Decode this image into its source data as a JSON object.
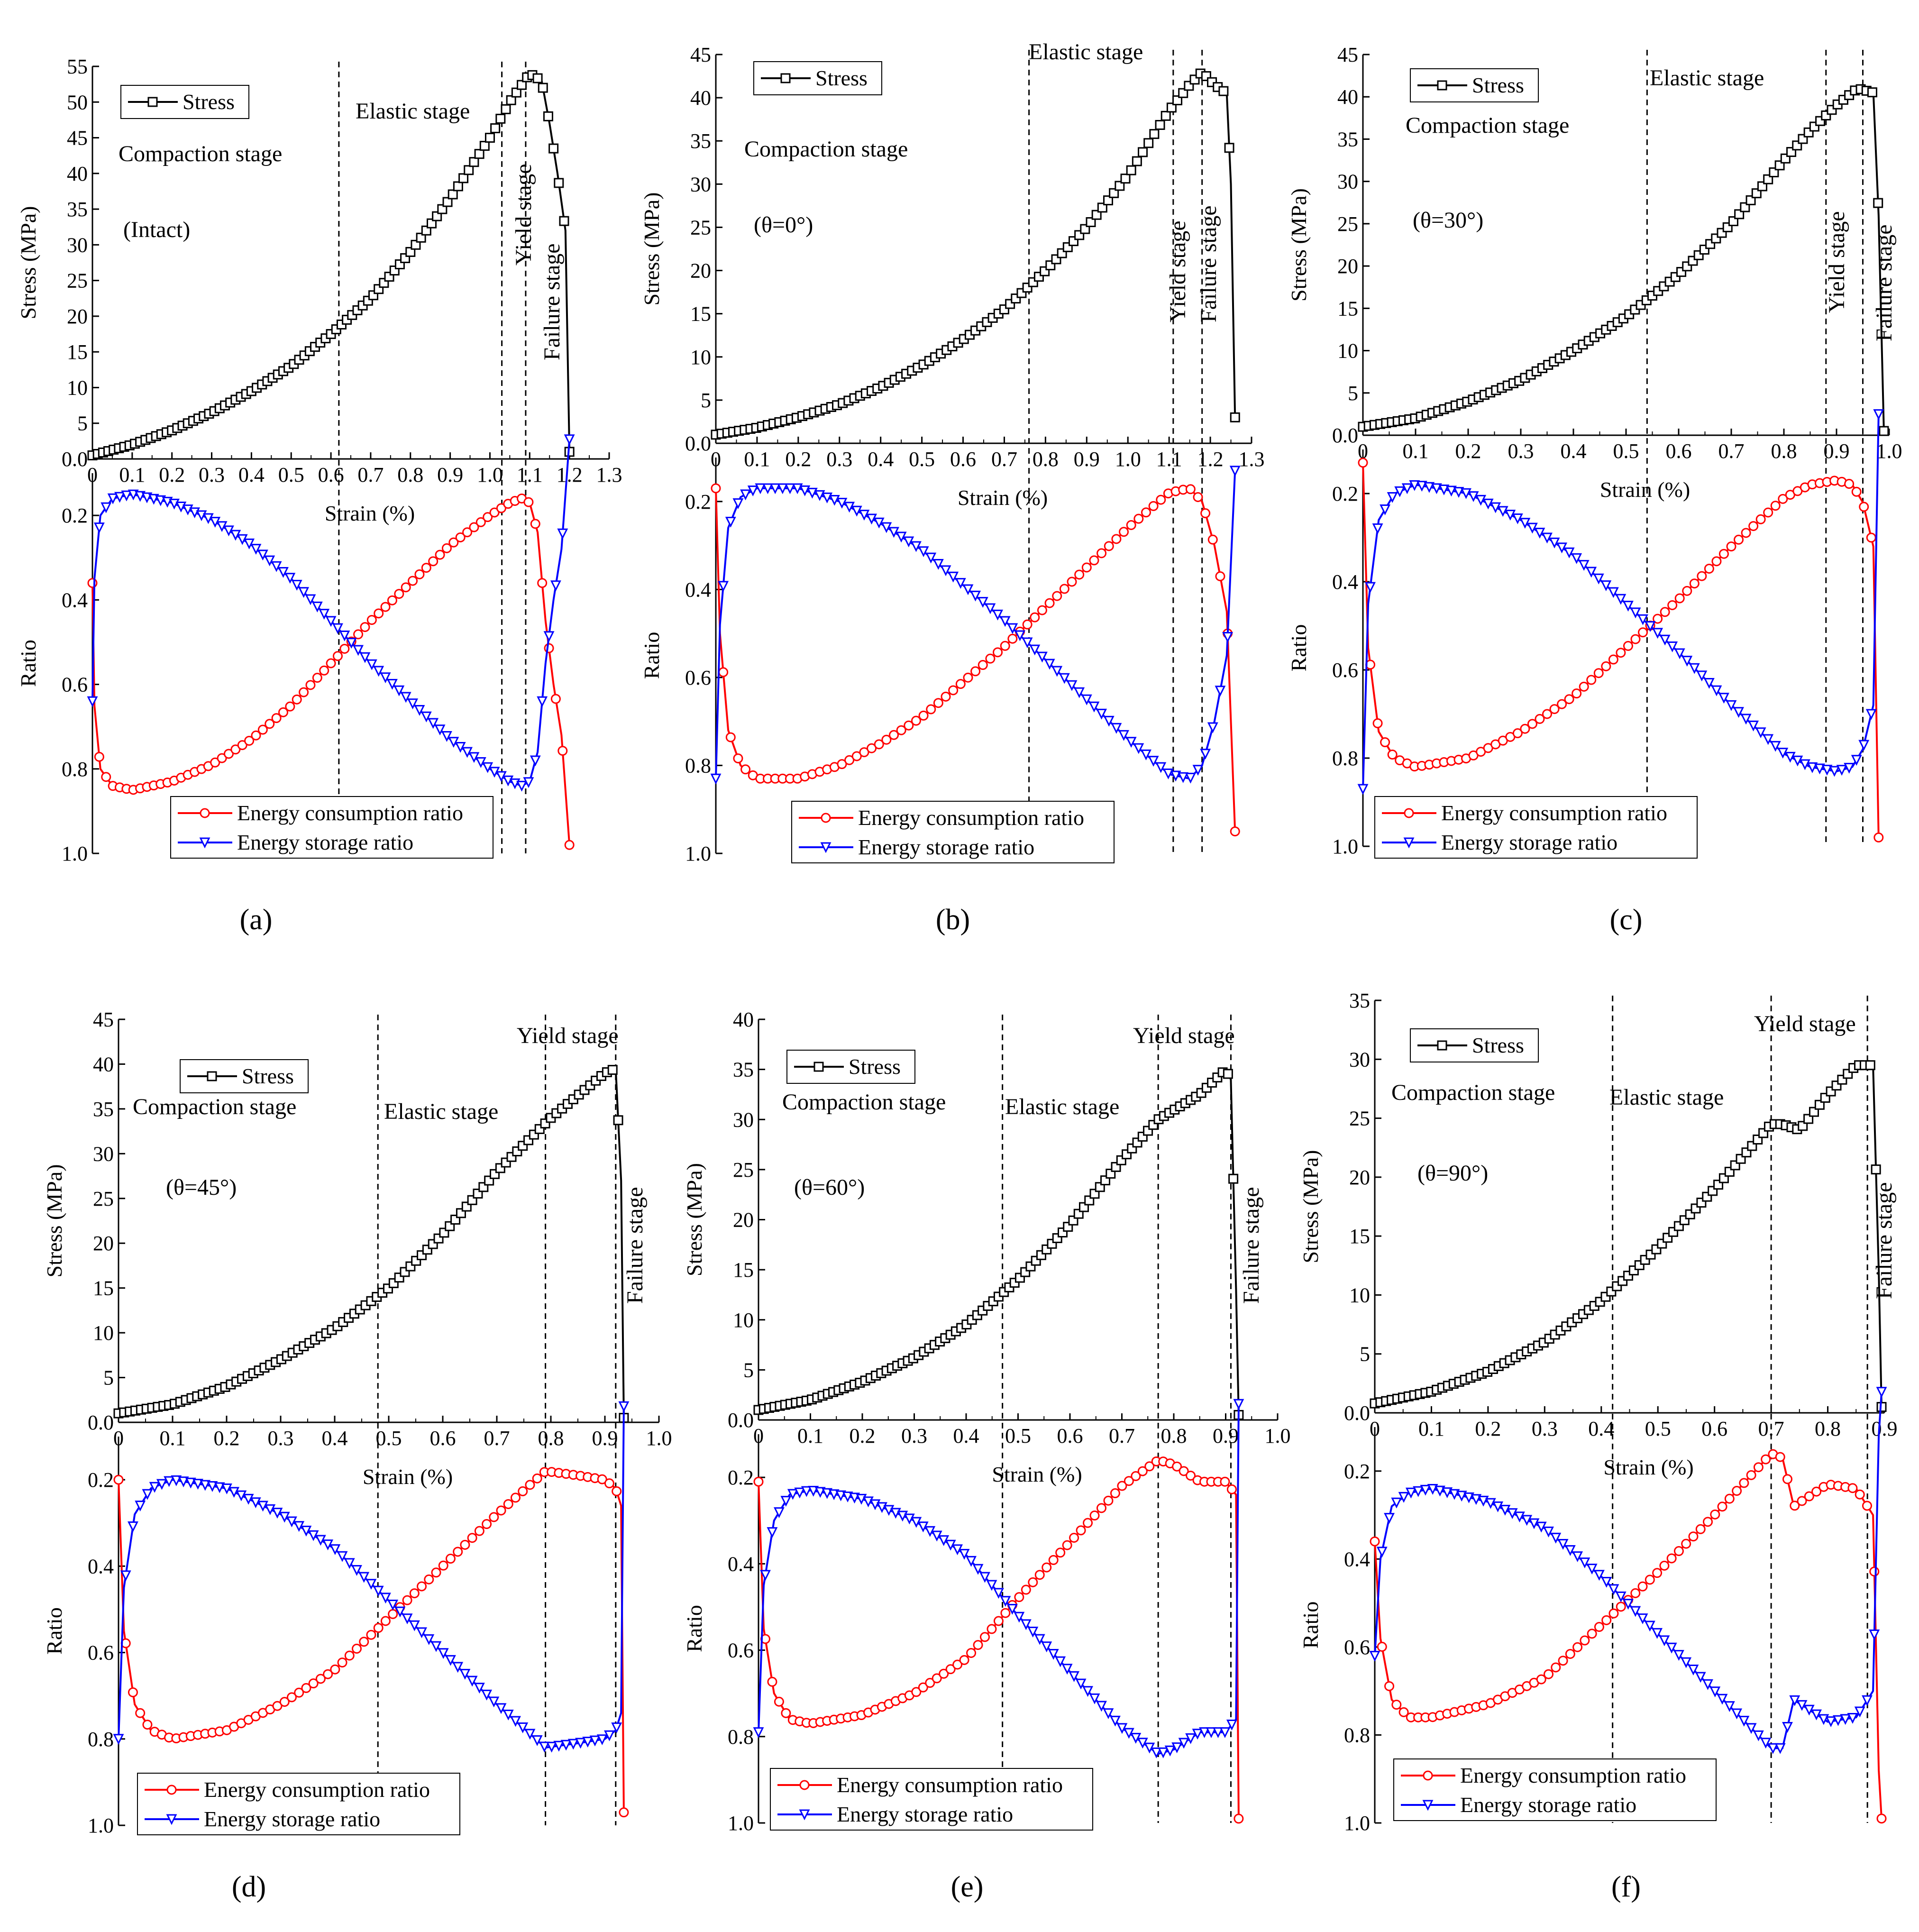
{
  "figure": {
    "panel_labels": [
      "(a)",
      "(b)",
      "(c)",
      "(d)",
      "(e)",
      "(f)"
    ]
  },
  "colors": {
    "stress": "#000000",
    "consumption": "#ff0000",
    "storage": "#0000ff"
  },
  "chart_data": [
    {
      "type": "line",
      "panel": "(a)",
      "condition": "(Intact)",
      "xlabel": "Strain (%)",
      "ylabel_top": "Stress (MPa)",
      "ylabel_bottom": "Ratio",
      "xlim": [
        0,
        1.3
      ],
      "xticks": [
        "0",
        "0.1",
        "0.2",
        "0.3",
        "0.4",
        "0.5",
        "0.6",
        "0.7",
        "0.8",
        "0.9",
        "1.0",
        "1.1",
        "1.2",
        "1.3"
      ],
      "xtick_values": [
        0,
        0.1,
        0.2,
        0.3,
        0.4,
        0.5,
        0.6,
        0.7,
        0.8,
        0.9,
        1.0,
        1.1,
        1.2,
        1.3
      ],
      "ylim_stress": [
        0,
        55
      ],
      "yticks_stress": [
        "0.0",
        "5",
        "10",
        "15",
        "20",
        "25",
        "30",
        "35",
        "40",
        "45",
        "50",
        "55"
      ],
      "ylim_ratio": [
        0.1,
        1.0
      ],
      "yticks_ratio": [
        "0.2",
        "0.4",
        "0.6",
        "0.8",
        "1.0"
      ],
      "ratio_tick_values": [
        0.2,
        0.4,
        0.6,
        0.8,
        1.0
      ],
      "stage_lines": [
        0.62,
        1.03,
        1.09
      ],
      "stage_labels": [
        "Compaction stage",
        "Elastic stage",
        "Yield stage",
        "Failure stage"
      ],
      "legend_stress": "Stress",
      "legend_consumption": "Energy consumption ratio",
      "legend_storage": "Energy storage ratio",
      "stress_x": [
        0,
        0.1,
        0.2,
        0.3,
        0.4,
        0.5,
        0.6,
        0.7,
        0.8,
        0.9,
        1.0,
        1.05,
        1.1,
        1.13,
        1.15,
        1.17,
        1.19,
        1.2
      ],
      "stress_y": [
        0.5,
        2.0,
        4.0,
        6.5,
        9.5,
        13.0,
        17.5,
        22.5,
        29.0,
        36.5,
        45.0,
        50.0,
        54.0,
        53.0,
        47.0,
        40.0,
        32.0,
        1.0
      ],
      "consumption_x": [
        0.0,
        0.005,
        0.02,
        0.05,
        0.1,
        0.2,
        0.3,
        0.4,
        0.5,
        0.6,
        0.7,
        0.8,
        0.9,
        1.0,
        1.05,
        1.08,
        1.1,
        1.12,
        1.14,
        1.16,
        1.18,
        1.2
      ],
      "consumption_y": [
        0.36,
        0.65,
        0.8,
        0.84,
        0.85,
        0.83,
        0.79,
        0.73,
        0.65,
        0.55,
        0.45,
        0.36,
        0.27,
        0.2,
        0.17,
        0.16,
        0.17,
        0.24,
        0.45,
        0.6,
        0.72,
        0.98
      ],
      "storage_x": [
        0.0,
        0.005,
        0.02,
        0.05,
        0.1,
        0.2,
        0.3,
        0.4,
        0.5,
        0.6,
        0.7,
        0.8,
        0.9,
        1.0,
        1.05,
        1.08,
        1.1,
        1.12,
        1.14,
        1.16,
        1.18,
        1.2
      ],
      "storage_y": [
        0.64,
        0.35,
        0.2,
        0.16,
        0.15,
        0.17,
        0.21,
        0.27,
        0.35,
        0.45,
        0.55,
        0.64,
        0.73,
        0.8,
        0.83,
        0.84,
        0.83,
        0.76,
        0.55,
        0.4,
        0.28,
        0.02
      ]
    },
    {
      "type": "line",
      "panel": "(b)",
      "condition": "(θ=0°)",
      "xlabel": "Strain (%)",
      "ylabel_top": "Stress (MPa)",
      "ylabel_bottom": "Ratio",
      "xlim": [
        0,
        1.3
      ],
      "xticks": [
        "0",
        "0.1",
        "0.2",
        "0.3",
        "0.4",
        "0.5",
        "0.6",
        "0.7",
        "0.8",
        "0.9",
        "1.0",
        "1.1",
        "1.2",
        "1.3"
      ],
      "xtick_values": [
        0,
        0.1,
        0.2,
        0.3,
        0.4,
        0.5,
        0.6,
        0.7,
        0.8,
        0.9,
        1.0,
        1.1,
        1.2,
        1.3
      ],
      "ylim_stress": [
        0,
        45
      ],
      "yticks_stress": [
        "0.0",
        "5",
        "10",
        "15",
        "20",
        "25",
        "30",
        "35",
        "40",
        "45"
      ],
      "ylim_ratio": [
        0.1,
        1.0
      ],
      "yticks_ratio": [
        "0.2",
        "0.4",
        "0.6",
        "0.8",
        "1.0"
      ],
      "ratio_tick_values": [
        0.2,
        0.4,
        0.6,
        0.8,
        1.0
      ],
      "stage_lines": [
        0.76,
        1.11,
        1.18
      ],
      "stage_labels": [
        "Compaction stage",
        "Elastic stage",
        "Yield stage",
        "Failure stage"
      ],
      "legend_stress": "Stress",
      "legend_consumption": "Energy consumption ratio",
      "legend_storage": "Energy storage ratio",
      "stress_x": [
        0,
        0.1,
        0.2,
        0.3,
        0.4,
        0.5,
        0.6,
        0.7,
        0.8,
        0.9,
        1.0,
        1.1,
        1.15,
        1.18,
        1.21,
        1.24,
        1.25,
        1.26
      ],
      "stress_y": [
        1.0,
        1.8,
        3.0,
        4.5,
        6.5,
        9.0,
        12.0,
        15.5,
        20.0,
        25.0,
        31.0,
        38.5,
        41.5,
        43.0,
        41.5,
        40.5,
        30.0,
        3.0
      ],
      "consumption_x": [
        0.0,
        0.01,
        0.03,
        0.06,
        0.1,
        0.2,
        0.3,
        0.4,
        0.5,
        0.6,
        0.7,
        0.8,
        0.9,
        1.0,
        1.1,
        1.15,
        1.18,
        1.21,
        1.24,
        1.26
      ],
      "consumption_y": [
        0.17,
        0.5,
        0.72,
        0.8,
        0.83,
        0.83,
        0.8,
        0.75,
        0.69,
        0.61,
        0.53,
        0.44,
        0.35,
        0.26,
        0.18,
        0.17,
        0.2,
        0.3,
        0.45,
        0.95
      ],
      "storage_x": [
        0.0,
        0.01,
        0.03,
        0.06,
        0.1,
        0.2,
        0.3,
        0.4,
        0.5,
        0.6,
        0.7,
        0.8,
        0.9,
        1.0,
        1.1,
        1.15,
        1.18,
        1.21,
        1.24,
        1.26
      ],
      "storage_y": [
        0.83,
        0.48,
        0.26,
        0.19,
        0.17,
        0.17,
        0.2,
        0.25,
        0.31,
        0.39,
        0.47,
        0.56,
        0.65,
        0.74,
        0.82,
        0.83,
        0.8,
        0.7,
        0.55,
        0.13
      ]
    },
    {
      "type": "line",
      "panel": "(c)",
      "condition": "(θ=30°)",
      "xlabel": "Strain (%)",
      "ylabel_top": "Stress (MPa)",
      "ylabel_bottom": "Ratio",
      "xlim": [
        0,
        1.0
      ],
      "xticks": [
        "0",
        "0.1",
        "0.2",
        "0.3",
        "0.4",
        "0.5",
        "0.6",
        "0.7",
        "0.8",
        "0.9",
        "1.0"
      ],
      "xtick_values": [
        0,
        0.1,
        0.2,
        0.3,
        0.4,
        0.5,
        0.6,
        0.7,
        0.8,
        0.9,
        1.0
      ],
      "ylim_stress": [
        0,
        45
      ],
      "yticks_stress": [
        "0.0",
        "5",
        "10",
        "15",
        "20",
        "25",
        "30",
        "35",
        "40",
        "45"
      ],
      "ylim_ratio": [
        0.1,
        1.0
      ],
      "yticks_ratio": [
        "0.2",
        "0.4",
        "0.6",
        "0.8",
        "1.0"
      ],
      "ratio_tick_values": [
        0.2,
        0.4,
        0.6,
        0.8,
        1.0
      ],
      "stage_lines": [
        0.54,
        0.88,
        0.95
      ],
      "stage_labels": [
        "Compaction stage",
        "Elastic stage",
        "Yield stage",
        "Failure stage"
      ],
      "legend_stress": "Stress",
      "legend_consumption": "Energy consumption ratio",
      "legend_storage": "Energy storage ratio",
      "stress_x": [
        0,
        0.1,
        0.2,
        0.3,
        0.4,
        0.5,
        0.6,
        0.7,
        0.8,
        0.85,
        0.9,
        0.94,
        0.97,
        0.98,
        0.99
      ],
      "stress_y": [
        1.0,
        2.0,
        4.0,
        6.5,
        10.0,
        14.0,
        19.0,
        25.0,
        32.5,
        36.0,
        39.0,
        41.0,
        40.5,
        26.0,
        0.5
      ],
      "consumption_x": [
        0.0,
        0.01,
        0.03,
        0.06,
        0.1,
        0.2,
        0.3,
        0.4,
        0.5,
        0.6,
        0.7,
        0.8,
        0.85,
        0.9,
        0.93,
        0.95,
        0.97,
        0.98
      ],
      "consumption_y": [
        0.13,
        0.55,
        0.74,
        0.8,
        0.82,
        0.8,
        0.74,
        0.66,
        0.55,
        0.44,
        0.32,
        0.21,
        0.18,
        0.17,
        0.18,
        0.22,
        0.32,
        0.98
      ],
      "storage_x": [
        0.0,
        0.01,
        0.03,
        0.06,
        0.1,
        0.2,
        0.3,
        0.4,
        0.5,
        0.6,
        0.7,
        0.8,
        0.85,
        0.9,
        0.93,
        0.95,
        0.97,
        0.98
      ],
      "storage_y": [
        0.87,
        0.45,
        0.26,
        0.2,
        0.18,
        0.2,
        0.26,
        0.34,
        0.45,
        0.56,
        0.68,
        0.79,
        0.82,
        0.83,
        0.82,
        0.78,
        0.68,
        0.02
      ]
    },
    {
      "type": "line",
      "panel": "(d)",
      "condition": "(θ=45°)",
      "xlabel": "Strain (%)",
      "ylabel_top": "Stress (MPa)",
      "ylabel_bottom": "Ratio",
      "xlim": [
        0,
        1.0
      ],
      "xticks": [
        "0",
        "0.1",
        "0.2",
        "0.3",
        "0.4",
        "0.5",
        "0.6",
        "0.7",
        "0.8",
        "0.9",
        "1.0"
      ],
      "xtick_values": [
        0,
        0.1,
        0.2,
        0.3,
        0.4,
        0.5,
        0.6,
        0.7,
        0.8,
        0.9,
        1.0
      ],
      "ylim_stress": [
        0,
        45
      ],
      "yticks_stress": [
        "0.0",
        "5",
        "10",
        "15",
        "20",
        "25",
        "30",
        "35",
        "40",
        "45"
      ],
      "ylim_ratio": [
        0.1,
        1.0
      ],
      "yticks_ratio": [
        "0.2",
        "0.4",
        "0.6",
        "0.8",
        "1.0"
      ],
      "ratio_tick_values": [
        0.2,
        0.4,
        0.6,
        0.8,
        1.0
      ],
      "stage_lines": [
        0.48,
        0.79,
        0.92
      ],
      "stage_labels": [
        "Compaction stage",
        "Elastic stage",
        "Yield stage",
        "Failure stage"
      ],
      "legend_stress": "Stress",
      "legend_consumption": "Energy consumption ratio",
      "legend_storage": "Energy storage ratio",
      "stress_x": [
        0,
        0.1,
        0.2,
        0.3,
        0.4,
        0.5,
        0.6,
        0.7,
        0.75,
        0.8,
        0.85,
        0.9,
        0.92,
        0.93,
        0.935
      ],
      "stress_y": [
        1.0,
        2.0,
        4.0,
        7.0,
        10.5,
        15.0,
        21.0,
        28.0,
        31.0,
        34.0,
        36.5,
        39.0,
        39.5,
        27.0,
        0.5
      ],
      "consumption_x": [
        0.0,
        0.01,
        0.03,
        0.06,
        0.1,
        0.2,
        0.3,
        0.4,
        0.5,
        0.6,
        0.7,
        0.79,
        0.85,
        0.9,
        0.92,
        0.93,
        0.935
      ],
      "consumption_y": [
        0.2,
        0.55,
        0.72,
        0.78,
        0.8,
        0.78,
        0.72,
        0.64,
        0.52,
        0.4,
        0.28,
        0.18,
        0.19,
        0.2,
        0.22,
        0.26,
        0.97
      ],
      "storage_x": [
        0.0,
        0.01,
        0.03,
        0.06,
        0.1,
        0.2,
        0.3,
        0.4,
        0.5,
        0.6,
        0.7,
        0.79,
        0.85,
        0.9,
        0.92,
        0.93,
        0.935
      ],
      "storage_y": [
        0.8,
        0.45,
        0.28,
        0.22,
        0.2,
        0.22,
        0.28,
        0.36,
        0.48,
        0.6,
        0.72,
        0.82,
        0.81,
        0.8,
        0.78,
        0.74,
        0.03
      ]
    },
    {
      "type": "line",
      "panel": "(e)",
      "condition": "(θ=60°)",
      "xlabel": "Strain (%)",
      "ylabel_top": "Stress (MPa)",
      "ylabel_bottom": "Ratio",
      "xlim": [
        0,
        1.0
      ],
      "xticks": [
        "0",
        "0.1",
        "0.2",
        "0.3",
        "0.4",
        "0.5",
        "0.6",
        "0.7",
        "0.8",
        "0.9",
        "1.0"
      ],
      "xtick_values": [
        0,
        0.1,
        0.2,
        0.3,
        0.4,
        0.5,
        0.6,
        0.7,
        0.8,
        0.9,
        1.0
      ],
      "ylim_stress": [
        0,
        40
      ],
      "yticks_stress": [
        "0.0",
        "5",
        "10",
        "15",
        "20",
        "25",
        "30",
        "35",
        "40"
      ],
      "ylim_ratio": [
        0.1,
        1.0
      ],
      "yticks_ratio": [
        "0.2",
        "0.4",
        "0.6",
        "0.8",
        "1.0"
      ],
      "ratio_tick_values": [
        0.2,
        0.4,
        0.6,
        0.8,
        1.0
      ],
      "stage_lines": [
        0.47,
        0.77,
        0.91
      ],
      "stage_labels": [
        "Compaction stage",
        "Elastic stage",
        "Yield  stage",
        "Failure stage"
      ],
      "legend_stress": "Stress",
      "legend_consumption": "Energy consumption ratio",
      "legend_storage": "Energy storage ratio",
      "stress_x": [
        0,
        0.1,
        0.2,
        0.3,
        0.4,
        0.5,
        0.6,
        0.7,
        0.77,
        0.85,
        0.9,
        0.91,
        0.92,
        0.925
      ],
      "stress_y": [
        1.0,
        2.0,
        3.8,
        6.2,
        9.5,
        14.0,
        19.5,
        26.0,
        30.0,
        32.5,
        35.0,
        34.0,
        13.0,
        0.5
      ],
      "consumption_x": [
        0.0,
        0.01,
        0.03,
        0.06,
        0.1,
        0.2,
        0.3,
        0.4,
        0.5,
        0.6,
        0.7,
        0.77,
        0.8,
        0.85,
        0.9,
        0.92,
        0.925
      ],
      "consumption_y": [
        0.21,
        0.55,
        0.7,
        0.76,
        0.77,
        0.75,
        0.7,
        0.62,
        0.48,
        0.35,
        0.22,
        0.16,
        0.17,
        0.21,
        0.21,
        0.24,
        0.99
      ],
      "storage_x": [
        0.0,
        0.01,
        0.03,
        0.06,
        0.1,
        0.2,
        0.3,
        0.4,
        0.5,
        0.6,
        0.7,
        0.77,
        0.8,
        0.85,
        0.9,
        0.92,
        0.925
      ],
      "storage_y": [
        0.79,
        0.45,
        0.3,
        0.24,
        0.23,
        0.25,
        0.3,
        0.38,
        0.52,
        0.65,
        0.78,
        0.84,
        0.83,
        0.79,
        0.79,
        0.76,
        0.03
      ]
    },
    {
      "type": "line",
      "panel": "(f)",
      "condition": "(θ=90°)",
      "xlabel": "Strain (%)",
      "ylabel_top": "Stress (MPa)",
      "ylabel_bottom": "Ratio",
      "xlim": [
        0,
        0.9
      ],
      "xticks": [
        "0",
        "0.1",
        "0.2",
        "0.3",
        "0.4",
        "0.5",
        "0.6",
        "0.7",
        "0.8",
        "0.9"
      ],
      "xtick_values": [
        0,
        0.1,
        0.2,
        0.3,
        0.4,
        0.5,
        0.6,
        0.7,
        0.8,
        0.9
      ],
      "ylim_stress": [
        0,
        35
      ],
      "yticks_stress": [
        "0.0",
        "5",
        "10",
        "15",
        "20",
        "25",
        "30",
        "35"
      ],
      "ylim_ratio": [
        0.1,
        1.0
      ],
      "yticks_ratio": [
        "0.2",
        "0.4",
        "0.6",
        "0.8",
        "1.0"
      ],
      "ratio_tick_values": [
        0.2,
        0.4,
        0.6,
        0.8,
        1.0
      ],
      "stage_lines": [
        0.42,
        0.7,
        0.87
      ],
      "stage_labels": [
        "Compaction stage",
        "Elastic stage",
        "Yield stage",
        "Failure stage"
      ],
      "legend_stress": "Stress",
      "legend_consumption": "Energy consumption ratio",
      "legend_storage": "Energy storage ratio",
      "stress_x": [
        0,
        0.1,
        0.2,
        0.3,
        0.4,
        0.5,
        0.6,
        0.7,
        0.72,
        0.75,
        0.8,
        0.85,
        0.88,
        0.89,
        0.895
      ],
      "stress_y": [
        0.8,
        1.8,
        3.5,
        6.0,
        9.5,
        14.0,
        19.0,
        24.5,
        24.5,
        24.0,
        27.0,
        29.5,
        29.5,
        12.0,
        0.5
      ],
      "consumption_x": [
        0.0,
        0.01,
        0.03,
        0.06,
        0.1,
        0.2,
        0.3,
        0.4,
        0.5,
        0.6,
        0.7,
        0.72,
        0.74,
        0.8,
        0.85,
        0.88,
        0.89,
        0.895
      ],
      "consumption_y": [
        0.36,
        0.58,
        0.72,
        0.76,
        0.76,
        0.73,
        0.67,
        0.55,
        0.43,
        0.3,
        0.16,
        0.17,
        0.28,
        0.23,
        0.24,
        0.3,
        0.88,
        0.99
      ],
      "storage_x": [
        0.0,
        0.01,
        0.03,
        0.06,
        0.1,
        0.2,
        0.3,
        0.4,
        0.5,
        0.6,
        0.7,
        0.72,
        0.74,
        0.8,
        0.85,
        0.88,
        0.89,
        0.895
      ],
      "storage_y": [
        0.62,
        0.4,
        0.28,
        0.25,
        0.24,
        0.27,
        0.33,
        0.44,
        0.57,
        0.7,
        0.83,
        0.83,
        0.72,
        0.77,
        0.76,
        0.7,
        0.12,
        0.02
      ]
    }
  ]
}
